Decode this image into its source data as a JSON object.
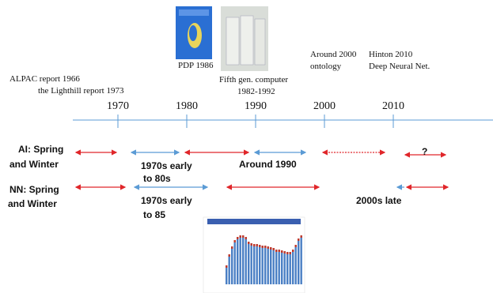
{
  "timeline": {
    "ticks": [
      "1970",
      "1980",
      "1990",
      "2000",
      "2010"
    ],
    "events": [
      {
        "lines": [
          "ALPAC report 1966"
        ]
      },
      {
        "lines": [
          "the Lighthill report 1973"
        ]
      },
      {
        "lines": [
          "PDP 1986"
        ]
      },
      {
        "lines": [
          "Fifth gen. computer",
          "1982-1992"
        ]
      },
      {
        "lines": [
          "Around 2000",
          "ontology"
        ]
      },
      {
        "lines": [
          "Hinton 2010",
          "Deep Neural Net."
        ]
      }
    ]
  },
  "rows": [
    {
      "label": [
        "AI: Spring",
        "and Winter"
      ],
      "notes": [
        [
          "1970s early",
          "to 80s"
        ],
        [
          "Around 1990"
        ],
        [
          "?"
        ]
      ]
    },
    {
      "label": [
        "NN: Spring",
        "and Winter"
      ],
      "notes": [
        [
          "1970s early",
          "to 85"
        ],
        [
          "2000s late"
        ]
      ]
    }
  ]
}
